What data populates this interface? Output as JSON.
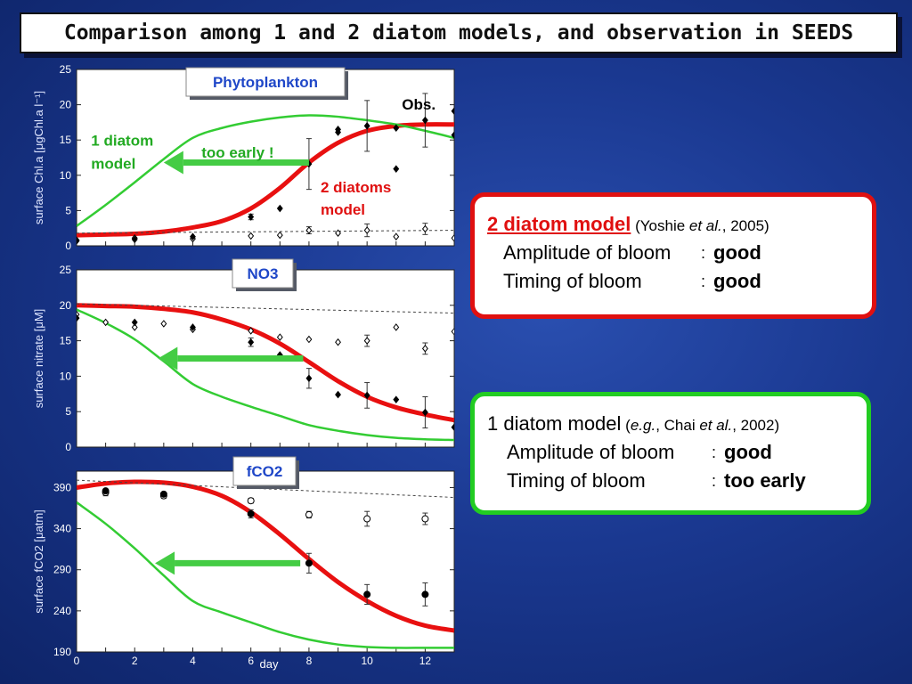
{
  "title": "Comparison among 1 and 2 diatom models, and observation in SEEDS",
  "colors": {
    "two_diatom": "#e81010",
    "one_diatom": "#33cc33",
    "obs": "#000000",
    "dashed": "#444444"
  },
  "chart_data": [
    {
      "type": "line",
      "panel_label": "Phytoplankton",
      "ylabel": "surface Chl.a [μgChl.a l⁻¹]",
      "xlim": [
        0,
        13
      ],
      "ylim": [
        0,
        25
      ],
      "x_ticks": [],
      "y_ticks": [
        0,
        5,
        10,
        15,
        20,
        25
      ],
      "series": [
        {
          "name": "2 diatoms model",
          "style": "red-thick",
          "x": [
            0,
            1,
            2,
            3,
            4,
            5,
            6,
            7,
            8,
            9,
            10,
            11,
            12,
            13
          ],
          "y": [
            1.5,
            1.6,
            1.7,
            2.0,
            2.6,
            3.5,
            5.3,
            8.2,
            11.8,
            14.6,
            16.3,
            17.0,
            17.2,
            17.2
          ]
        },
        {
          "name": "1 diatom model",
          "style": "green",
          "x": [
            0,
            1,
            2,
            3,
            4,
            5,
            6,
            7,
            8,
            9,
            10,
            11,
            12,
            13
          ],
          "y": [
            2.8,
            5.8,
            9.0,
            12.3,
            15.3,
            16.7,
            17.6,
            18.2,
            18.5,
            18.3,
            17.8,
            17.2,
            16.3,
            15.3
          ]
        },
        {
          "name": "",
          "style": "dashed",
          "x": [
            0,
            13
          ],
          "y": [
            1.8,
            2.2
          ]
        }
      ],
      "obs_filled": [
        {
          "x": 0,
          "y": 0.7
        },
        {
          "x": 2,
          "y": 0.9
        },
        {
          "x": 4,
          "y": 1.3
        },
        {
          "x": 6,
          "y": 4.1,
          "err": 0.4
        },
        {
          "x": 7,
          "y": 5.3
        },
        {
          "x": 8,
          "y": 11.6,
          "err": 3.6
        },
        {
          "x": 9,
          "y": 16.1
        },
        {
          "x": 9,
          "y": 16.5
        },
        {
          "x": 10,
          "y": 17.0,
          "err": 3.6
        },
        {
          "x": 11,
          "y": 10.9
        },
        {
          "x": 11,
          "y": 16.7
        },
        {
          "x": 12,
          "y": 17.8,
          "err": 3.8
        },
        {
          "x": 13,
          "y": 19.1
        },
        {
          "x": 13,
          "y": 15.7
        }
      ],
      "obs_open": [
        {
          "x": 0,
          "y": 0.8
        },
        {
          "x": 2,
          "y": 1.1
        },
        {
          "x": 4,
          "y": 1.0
        },
        {
          "x": 6,
          "y": 1.4
        },
        {
          "x": 7,
          "y": 1.5
        },
        {
          "x": 8,
          "y": 2.2,
          "err": 0.5
        },
        {
          "x": 9,
          "y": 1.8
        },
        {
          "x": 10,
          "y": 2.2,
          "err": 0.9
        },
        {
          "x": 11,
          "y": 1.3
        },
        {
          "x": 12,
          "y": 2.4,
          "err": 0.8
        },
        {
          "x": 13,
          "y": 1.1
        }
      ],
      "annotations": [
        {
          "text": "Obs.",
          "x": 11.2,
          "y": 19.3,
          "color": "#000000"
        },
        {
          "text": "1 diatom",
          "x": 0.5,
          "y": 14.2,
          "color": "#22aa22"
        },
        {
          "text": "model",
          "x": 0.5,
          "y": 10.9,
          "color": "#22aa22"
        },
        {
          "text": "too early !",
          "x": 4.3,
          "y": 12.5,
          "color": "#22aa22"
        },
        {
          "text": "2 diatoms",
          "x": 8.4,
          "y": 7.6,
          "color": "#e01010"
        },
        {
          "text": "model",
          "x": 8.4,
          "y": 4.4,
          "color": "#e01010"
        }
      ],
      "arrows": [
        {
          "from": [
            8.0,
            11.8
          ],
          "to": [
            3.0,
            11.8
          ],
          "color": "#44cc44"
        }
      ]
    },
    {
      "type": "line",
      "panel_label": "NO3",
      "ylabel": "surface nitrate [μM]",
      "xlim": [
        0,
        13
      ],
      "ylim": [
        0,
        25
      ],
      "x_ticks": [],
      "y_ticks": [
        0,
        5,
        10,
        15,
        20,
        25
      ],
      "series": [
        {
          "name": "2 diatoms model",
          "style": "red-thick",
          "x": [
            0,
            1,
            2,
            3,
            4,
            5,
            6,
            7,
            8,
            9,
            10,
            11,
            12,
            13
          ],
          "y": [
            20.0,
            19.9,
            19.8,
            19.5,
            19.0,
            18.0,
            16.6,
            14.6,
            12.0,
            9.3,
            7.1,
            5.6,
            4.6,
            3.8
          ]
        },
        {
          "name": "1 diatom model",
          "style": "green",
          "x": [
            0,
            1,
            2,
            3,
            4,
            5,
            6,
            7,
            8,
            9,
            10,
            11,
            12,
            13
          ],
          "y": [
            19.4,
            17.5,
            15.2,
            12.1,
            8.9,
            7.1,
            5.7,
            4.4,
            3.1,
            2.3,
            1.7,
            1.3,
            1.1,
            1.0
          ]
        },
        {
          "name": "",
          "style": "dashed",
          "x": [
            0,
            13
          ],
          "y": [
            20.2,
            18.9
          ]
        }
      ],
      "obs_filled": [
        {
          "x": 0,
          "y": 18.2
        },
        {
          "x": 2,
          "y": 17.6
        },
        {
          "x": 4,
          "y": 16.9
        },
        {
          "x": 6,
          "y": 14.8,
          "err": 0.6
        },
        {
          "x": 7,
          "y": 13.0
        },
        {
          "x": 8,
          "y": 9.7,
          "err": 1.4
        },
        {
          "x": 9,
          "y": 7.4
        },
        {
          "x": 10,
          "y": 7.3,
          "err": 1.8
        },
        {
          "x": 11,
          "y": 6.7
        },
        {
          "x": 12,
          "y": 4.9,
          "err": 2.2
        },
        {
          "x": 13,
          "y": 2.8
        }
      ],
      "obs_open": [
        {
          "x": 0,
          "y": 18.7
        },
        {
          "x": 1,
          "y": 17.6
        },
        {
          "x": 2,
          "y": 16.9
        },
        {
          "x": 3,
          "y": 17.4
        },
        {
          "x": 4,
          "y": 16.6
        },
        {
          "x": 6,
          "y": 16.4
        },
        {
          "x": 7,
          "y": 15.5
        },
        {
          "x": 8,
          "y": 15.2
        },
        {
          "x": 9,
          "y": 14.8
        },
        {
          "x": 10,
          "y": 15.0,
          "err": 0.8
        },
        {
          "x": 11,
          "y": 16.9
        },
        {
          "x": 12,
          "y": 13.9,
          "err": 0.8
        },
        {
          "x": 13,
          "y": 16.3
        }
      ],
      "annotations": [],
      "arrows": [
        {
          "from": [
            7.8,
            12.5
          ],
          "to": [
            2.8,
            12.5
          ],
          "color": "#44cc44"
        }
      ]
    },
    {
      "type": "line",
      "panel_label": "fCO2",
      "ylabel": "surface fCO2 [μatm]",
      "xlabel": "day",
      "xlim": [
        0,
        13
      ],
      "ylim": [
        190,
        410
      ],
      "x_ticks": [
        0,
        2,
        4,
        6,
        8,
        10,
        12
      ],
      "y_ticks": [
        190,
        240,
        290,
        340,
        390
      ],
      "series": [
        {
          "name": "2 diatoms model",
          "style": "red-thick",
          "x": [
            0,
            1,
            2,
            3,
            4,
            5,
            6,
            7,
            8,
            9,
            10,
            11,
            12,
            13
          ],
          "y": [
            390,
            395,
            397,
            396,
            391,
            380,
            360,
            333,
            303,
            275,
            252,
            234,
            222,
            216
          ]
        },
        {
          "name": "1 diatom model",
          "style": "green",
          "x": [
            0,
            1,
            2,
            3,
            4,
            5,
            6,
            7,
            8,
            9,
            10,
            11,
            12,
            13
          ],
          "y": [
            372,
            346,
            316,
            283,
            252,
            238,
            226,
            214,
            205,
            199,
            196,
            195,
            195,
            195
          ]
        },
        {
          "name": "",
          "style": "dashed",
          "x": [
            0,
            13
          ],
          "y": [
            399,
            378
          ]
        }
      ],
      "obs_filled": [
        {
          "x": 1,
          "y": 386
        },
        {
          "x": 3,
          "y": 382
        },
        {
          "x": 6,
          "y": 358,
          "err": 5
        },
        {
          "x": 8,
          "y": 298,
          "err": 12
        },
        {
          "x": 10,
          "y": 260,
          "err": 12
        },
        {
          "x": 12,
          "y": 260,
          "err": 14
        }
      ],
      "obs_open": [
        {
          "x": 1,
          "y": 384,
          "err": 4
        },
        {
          "x": 3,
          "y": 380,
          "err": 3
        },
        {
          "x": 6,
          "y": 374,
          "err": 3
        },
        {
          "x": 8,
          "y": 357,
          "err": 4
        },
        {
          "x": 10,
          "y": 352,
          "err": 9
        },
        {
          "x": 12,
          "y": 352,
          "err": 7
        }
      ],
      "annotations": [],
      "arrows": [
        {
          "from": [
            7.7,
            298
          ],
          "to": [
            2.7,
            298
          ],
          "color": "#44cc44"
        }
      ]
    }
  ],
  "two_diatom_box": {
    "title": "2 diatom model",
    "citation_pre": "(Yoshie ",
    "citation_italic": "et al.",
    "citation_post": ", 2005)",
    "rows": [
      {
        "label": "Amplitude of bloom",
        "value": "good"
      },
      {
        "label": "Timing of bloom",
        "value": "good"
      }
    ]
  },
  "one_diatom_box": {
    "title": "1 diatom model",
    "citation_pre": "(",
    "citation_italic": "e.g.",
    "citation_mid": ", Chai ",
    "citation_italic2": "et al.",
    "citation_post": ", 2002)",
    "rows": [
      {
        "label": "Amplitude of bloom",
        "value": "good"
      },
      {
        "label": "Timing of bloom",
        "value": "too early"
      }
    ]
  }
}
